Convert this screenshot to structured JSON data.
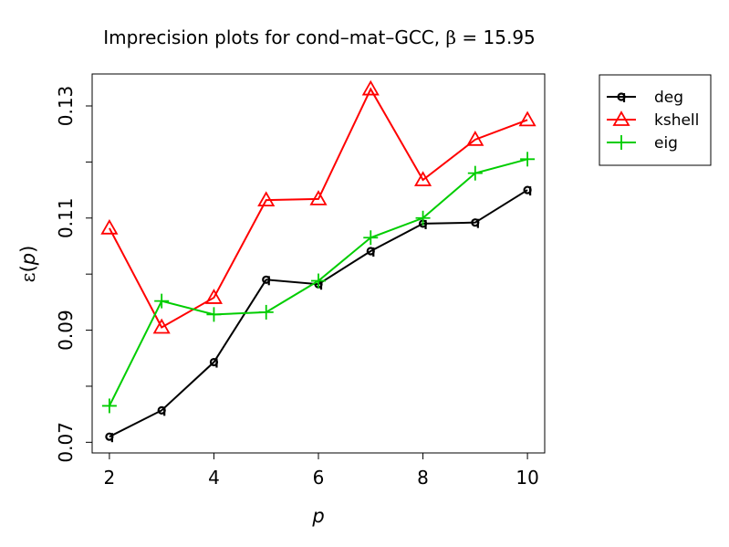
{
  "chart_data": {
    "type": "line",
    "title_prefix": "Imprecision plots for cond",
    "title_mid": "mat",
    "title_suffix": "GCC, ",
    "title_beta": "β",
    "title_beta_value": " = 15.95",
    "xlabel": "p",
    "ylabel_eps": "ε",
    "ylabel_open": "(",
    "ylabel_p": "p",
    "ylabel_close": ")",
    "xlim": [
      1.67,
      10.33
    ],
    "ylim": [
      0.0681,
      0.1357
    ],
    "x_ticks": [
      2,
      4,
      6,
      8,
      10
    ],
    "y_ticks": [
      0.07,
      0.09,
      0.11,
      0.13
    ],
    "y_tick_labels": [
      "0.07",
      "0.09",
      "0.11",
      "0.13"
    ],
    "y_minor_ticks": [
      0.08,
      0.1,
      0.12
    ],
    "x": [
      2,
      3,
      4,
      5,
      6,
      7,
      8,
      9,
      10
    ],
    "series": [
      {
        "name": "deg",
        "color": "#000000",
        "marker": "circle-tick",
        "values": [
          0.071,
          0.0757,
          0.0843,
          0.099,
          0.0982,
          0.1041,
          0.109,
          0.1092,
          0.115
        ]
      },
      {
        "name": "kshell",
        "color": "#ff0000",
        "marker": "triangle",
        "values": [
          0.1082,
          0.0905,
          0.0958,
          0.1132,
          0.1134,
          0.133,
          0.1168,
          0.124,
          0.1275
        ]
      },
      {
        "name": "eig",
        "color": "#00cd00",
        "marker": "plus",
        "values": [
          0.0765,
          0.0952,
          0.0928,
          0.0932,
          0.0988,
          0.1065,
          0.11,
          0.118,
          0.1205
        ]
      }
    ],
    "grid": false,
    "legend_position": "outside-top-right"
  }
}
